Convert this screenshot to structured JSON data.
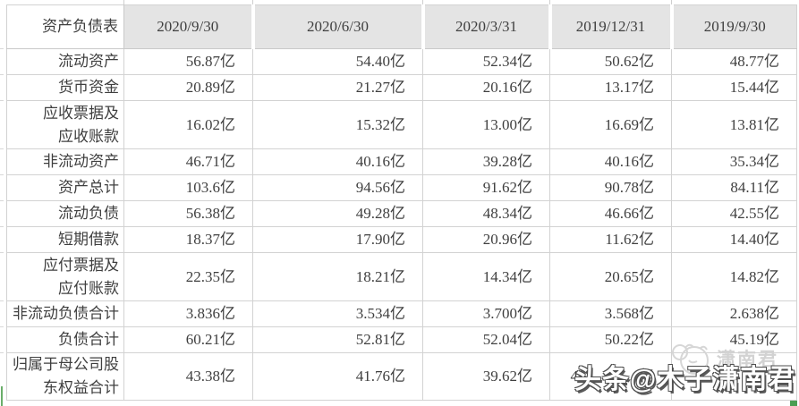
{
  "table": {
    "header": {
      "label": "资产负债表",
      "dates": [
        "2020/9/30",
        "2020/6/30",
        "2020/3/31",
        "2019/12/31",
        "2019/9/30"
      ]
    },
    "rows": [
      {
        "label": "流动资产",
        "values": [
          "56.87亿",
          "54.40亿",
          "52.34亿",
          "50.62亿",
          "48.77亿"
        ]
      },
      {
        "label": "货币资金",
        "values": [
          "20.89亿",
          "21.27亿",
          "20.16亿",
          "13.17亿",
          "15.44亿"
        ]
      },
      {
        "label": "应收票据及\n应收账款",
        "values": [
          "16.02亿",
          "15.32亿",
          "13.00亿",
          "16.69亿",
          "13.81亿"
        ]
      },
      {
        "label": "非流动资产",
        "values": [
          "46.71亿",
          "40.16亿",
          "39.28亿",
          "40.16亿",
          "35.34亿"
        ]
      },
      {
        "label": "资产总计",
        "values": [
          "103.6亿",
          "94.56亿",
          "91.62亿",
          "90.78亿",
          "84.11亿"
        ]
      },
      {
        "label": "流动负债",
        "values": [
          "56.38亿",
          "49.28亿",
          "48.34亿",
          "46.66亿",
          "42.55亿"
        ]
      },
      {
        "label": "短期借款",
        "values": [
          "18.37亿",
          "17.90亿",
          "20.96亿",
          "11.62亿",
          "14.40亿"
        ]
      },
      {
        "label": "应付票据及\n应付账款",
        "values": [
          "22.35亿",
          "18.21亿",
          "14.34亿",
          "20.65亿",
          "14.82亿"
        ]
      },
      {
        "label": "非流动负债合计",
        "values": [
          "3.836亿",
          "3.534亿",
          "3.700亿",
          "3.568亿",
          "2.638亿"
        ]
      },
      {
        "label": "负债合计",
        "values": [
          "60.21亿",
          "52.81亿",
          "52.04亿",
          "50.22亿",
          "45.19亿"
        ]
      },
      {
        "label": "归属于母公司股\n东权益合计",
        "values": [
          "43.38亿",
          "41.76亿",
          "39.62亿",
          "4    亿",
          ""
        ]
      }
    ]
  },
  "watermark": {
    "main_text": "头条@木子潇南君",
    "logo_text": "潇南君"
  },
  "colors": {
    "header_bg": "#e4e4e4",
    "gridline": "#d2d2d2",
    "text": "#3f3f3f",
    "accent_green": "#4a9e52",
    "watermark_gray": "#d2d2d2"
  }
}
